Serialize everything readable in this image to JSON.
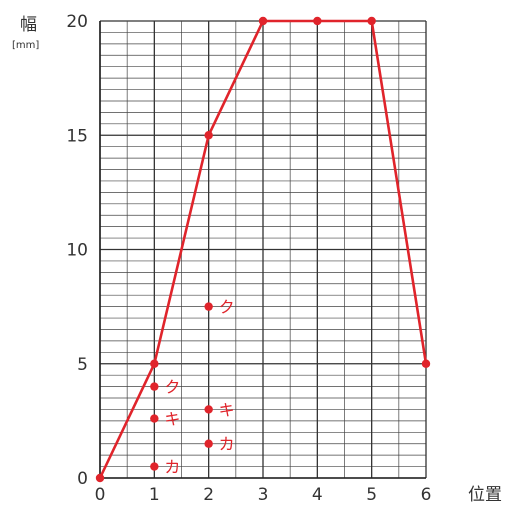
{
  "chart_data": {
    "type": "line",
    "ylabel": "幅",
    "yunit": "[mm]",
    "xlabel": "位置",
    "xlim": [
      0,
      6
    ],
    "ylim": [
      0,
      20
    ],
    "x_ticks": [
      "0",
      "1",
      "2",
      "3",
      "4",
      "5",
      "6"
    ],
    "y_ticks": [
      "0",
      "5",
      "10",
      "15",
      "20"
    ],
    "grid": true,
    "line_color": "#e0242b",
    "series": [
      {
        "x": [
          0,
          1,
          2,
          3,
          4,
          5,
          6
        ],
        "y": [
          0,
          5,
          15,
          20,
          20,
          20,
          5
        ]
      }
    ],
    "points": [
      {
        "x": 2,
        "y": 7.5,
        "label": "ク"
      },
      {
        "x": 1,
        "y": 4.0,
        "label": "ク"
      },
      {
        "x": 1,
        "y": 2.6,
        "label": "キ"
      },
      {
        "x": 1,
        "y": 0.5,
        "label": "カ"
      },
      {
        "x": 2,
        "y": 3.0,
        "label": "キ"
      },
      {
        "x": 2,
        "y": 1.5,
        "label": "カ"
      }
    ]
  }
}
